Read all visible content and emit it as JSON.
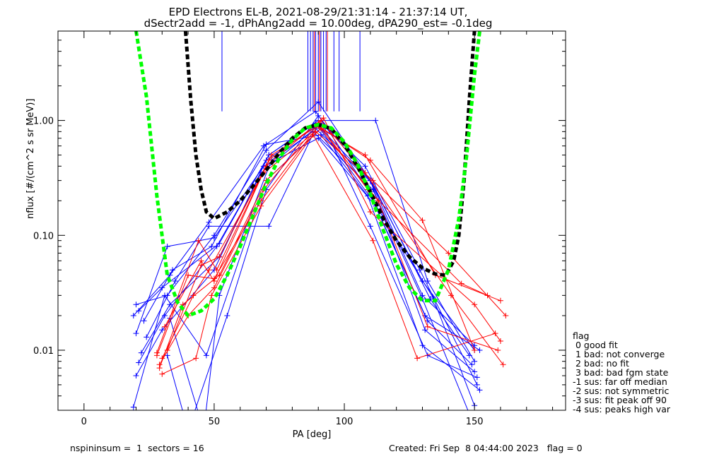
{
  "title_line1": "EPD Electrons EL-B, 2021-08-29/21:31:14 - 21:37:14 UT,",
  "title_line2": "dSectr2add = -1, dPhAng2add = 10.00deg, dPA290_est=  -0.1deg",
  "footer_left": "nspininsum =  1  sectors = 16",
  "footer_right": "Created: Fri Sep  8 04:44:00 2023   flag = 0",
  "legend": {
    "title": "flag",
    "items": [
      " 0 good fit",
      " 1 bad: not converge",
      " 2 bad: no fit",
      " 3 bad: bad fgm state",
      "-1 sus: far off median",
      "-2 sus: not symmetric",
      "-3 sus: fit peak off 90",
      "-4 sus: peaks high var"
    ]
  },
  "colors": {
    "blue": "#0000ff",
    "red": "#ff0000",
    "green": "#00ff00",
    "black": "#000000"
  },
  "chart_data": {
    "type": "line",
    "xlabel": "PA [deg]",
    "ylabel": "nflux [#/(cm^2 s sr MeV)]",
    "xlim": [
      -10,
      185
    ],
    "ylim": [
      0.003,
      6
    ],
    "yscale": "log",
    "xticks": [
      0,
      50,
      100,
      150
    ],
    "yticks": [
      0.01,
      0.1,
      1.0
    ],
    "ytick_labels": [
      "0.01",
      "0.10",
      "1.00"
    ],
    "series": [
      {
        "color": "blue",
        "x": [
          20,
          32,
          50,
          70,
          90,
          110,
          130,
          150
        ],
        "y": [
          0.025,
          0.03,
          0.1,
          0.55,
          1.45,
          0.3,
          0.03,
          0.011
        ]
      },
      {
        "color": "blue",
        "x": [
          19,
          33,
          48,
          69,
          89,
          109,
          131,
          152
        ],
        "y": [
          0.02,
          0.045,
          0.13,
          0.6,
          1.2,
          0.25,
          0.02,
          0.01
        ]
      },
      {
        "color": "blue",
        "x": [
          21,
          31,
          51,
          71,
          90,
          112,
          132,
          150
        ],
        "y": [
          0.0078,
          0.02,
          0.08,
          0.5,
          1.0,
          1.0,
          0.04,
          0.008
        ]
      },
      {
        "color": "blue",
        "x": [
          20,
          30,
          50,
          70,
          91,
          108,
          129,
          151
        ],
        "y": [
          0.006,
          0.015,
          0.05,
          0.45,
          0.95,
          0.4,
          0.05,
          0.005
        ]
      },
      {
        "color": "blue",
        "x": [
          22,
          33,
          52,
          68,
          90,
          110,
          131,
          150
        ],
        "y": [
          0.0095,
          0.025,
          0.065,
          0.35,
          0.9,
          0.3,
          0.015,
          0.0065
        ]
      },
      {
        "color": "blue",
        "x": [
          24,
          35,
          48,
          71,
          89,
          111,
          133,
          148
        ],
        "y": [
          0.013,
          0.04,
          0.12,
          0.12,
          0.85,
          0.28,
          0.028,
          0.009
        ]
      },
      {
        "color": "blue",
        "x": [
          23,
          34,
          49,
          70,
          91,
          109,
          130,
          152
        ],
        "y": [
          0.018,
          0.05,
          0.08,
          0.62,
          0.75,
          0.22,
          0.011,
          0.0045
        ]
      },
      {
        "color": "blue",
        "x": [
          20,
          32,
          50,
          69,
          90,
          112,
          132,
          149
        ],
        "y": [
          0.014,
          0.08,
          0.095,
          0.4,
          0.7,
          0.18,
          0.018,
          0.0075
        ]
      },
      {
        "color": "blue",
        "x": [
          19,
          31,
          47,
          70,
          92,
          110,
          132,
          151
        ],
        "y": [
          0.0032,
          0.03,
          0.009,
          0.3,
          0.9,
          0.12,
          0.009,
          0.0058
        ]
      },
      {
        "color": "blue",
        "x": [
          21,
          30,
          52,
          71,
          89,
          111,
          134,
          150
        ],
        "y": [
          0.022,
          0.035,
          0.085,
          0.5,
          0.95,
          0.2,
          0.029,
          0.0033
        ]
      },
      {
        "color": "blue",
        "x": [
          32,
          40,
          55,
          70,
          90,
          110,
          130,
          150
        ],
        "y": [
          0.009,
          0.002,
          0.02,
          0.25,
          1.1,
          0.3,
          0.04,
          0.01
        ]
      },
      {
        "color": "blue",
        "x": [
          33,
          46,
          52,
          72,
          88,
          111,
          130,
          148
        ],
        "y": [
          0.019,
          0.002,
          0.03,
          0.45,
          0.8,
          0.25,
          0.028,
          0.0028
        ]
      },
      {
        "color": "red",
        "x": [
          28,
          40,
          50,
          68,
          90,
          110,
          130,
          150
        ],
        "y": [
          0.009,
          0.045,
          0.042,
          0.2,
          0.9,
          0.45,
          0.135,
          0.01
        ]
      },
      {
        "color": "red",
        "x": [
          29,
          38,
          52,
          70,
          91,
          108,
          135,
          160
        ],
        "y": [
          0.007,
          0.025,
          0.045,
          0.3,
          0.85,
          0.5,
          0.045,
          0.027
        ]
      },
      {
        "color": "red",
        "x": [
          30,
          42,
          48,
          69,
          89,
          111,
          140,
          162
        ],
        "y": [
          0.0085,
          0.03,
          0.05,
          0.35,
          0.8,
          0.3,
          0.07,
          0.02
        ]
      },
      {
        "color": "red",
        "x": [
          31,
          45,
          50,
          71,
          90,
          109,
          145,
          155
        ],
        "y": [
          0.016,
          0.06,
          0.04,
          0.45,
          0.95,
          0.25,
          0.038,
          0.03
        ]
      },
      {
        "color": "red",
        "x": [
          28,
          44,
          51,
          70,
          92,
          110,
          150,
          160
        ],
        "y": [
          0.0095,
          0.09,
          0.05,
          0.4,
          1.05,
          0.16,
          0.025,
          0.012
        ]
      },
      {
        "color": "red",
        "x": [
          30,
          43,
          49,
          68,
          88,
          111,
          128,
          158
        ],
        "y": [
          0.0062,
          0.0085,
          0.03,
          0.18,
          0.75,
          0.09,
          0.0085,
          0.014
        ]
      },
      {
        "color": "red",
        "x": [
          32,
          45,
          52,
          72,
          90,
          113,
          132,
          159
        ],
        "y": [
          0.01,
          0.055,
          0.065,
          0.5,
          0.9,
          0.2,
          0.016,
          0.01
        ]
      },
      {
        "color": "red",
        "x": [
          29,
          40,
          50,
          69,
          91,
          108,
          141,
          161
        ],
        "y": [
          0.0075,
          0.02,
          0.035,
          0.25,
          1.0,
          0.35,
          0.03,
          0.0075
        ]
      }
    ],
    "fit_green": {
      "x": [
        20,
        24,
        28,
        32,
        36,
        40,
        45,
        50,
        55,
        60,
        65,
        70,
        75,
        80,
        85,
        90,
        95,
        100,
        105,
        110,
        115,
        120,
        125,
        130,
        135,
        140,
        144,
        147,
        150,
        152
      ],
      "y": [
        6,
        1.6,
        0.22,
        0.045,
        0.026,
        0.02,
        0.022,
        0.028,
        0.045,
        0.08,
        0.15,
        0.28,
        0.47,
        0.68,
        0.86,
        0.92,
        0.86,
        0.65,
        0.42,
        0.23,
        0.11,
        0.056,
        0.035,
        0.027,
        0.027,
        0.05,
        0.14,
        0.5,
        2.5,
        6
      ]
    },
    "fit_black": {
      "x": [
        39,
        41,
        43,
        45,
        47,
        50,
        55,
        60,
        65,
        70,
        75,
        80,
        85,
        90,
        95,
        100,
        105,
        110,
        115,
        120,
        125,
        130,
        135,
        139,
        142,
        144,
        146,
        148,
        150
      ],
      "y": [
        6,
        1.5,
        0.5,
        0.25,
        0.16,
        0.14,
        0.16,
        0.2,
        0.27,
        0.37,
        0.52,
        0.7,
        0.86,
        0.92,
        0.85,
        0.62,
        0.4,
        0.24,
        0.14,
        0.09,
        0.065,
        0.052,
        0.046,
        0.045,
        0.06,
        0.1,
        0.3,
        1.5,
        6
      ]
    },
    "vertical_lines_blue": [
      {
        "x": 53,
        "y0": 6,
        "y1": 1.2
      },
      {
        "x": 86,
        "y0": 6,
        "y1": 1.2
      },
      {
        "x": 87,
        "y0": 6,
        "y1": 1.2
      },
      {
        "x": 88,
        "y0": 6,
        "y1": 1.2
      },
      {
        "x": 89,
        "y0": 6,
        "y1": 1.2
      },
      {
        "x": 90,
        "y0": 6,
        "y1": 1.2
      },
      {
        "x": 91,
        "y0": 6,
        "y1": 1.2
      },
      {
        "x": 92,
        "y0": 6,
        "y1": 1.2
      },
      {
        "x": 93,
        "y0": 6,
        "y1": 1.2
      },
      {
        "x": 96,
        "y0": 6,
        "y1": 1.2
      },
      {
        "x": 98,
        "y0": 6,
        "y1": 1.2
      },
      {
        "x": 106,
        "y0": 6,
        "y1": 1.2
      }
    ],
    "vertical_lines_red": [
      {
        "x": 88.5,
        "y0": 6,
        "y1": 1.2
      },
      {
        "x": 90.5,
        "y0": 6,
        "y1": 1.2
      },
      {
        "x": 93.5,
        "y0": 6,
        "y1": 1.2
      }
    ]
  }
}
